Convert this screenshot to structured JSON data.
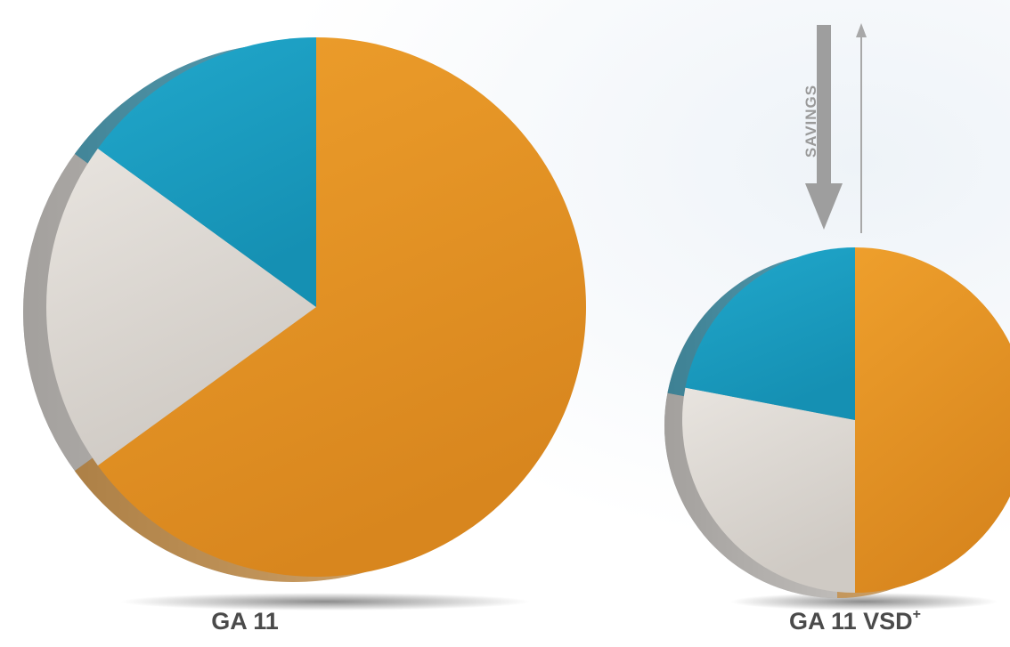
{
  "chart_data": [
    {
      "type": "pie",
      "title": "",
      "label": "GA 11",
      "slices": [
        {
          "value": 65,
          "color": "#ee9f2c",
          "shade": "#d8861e"
        },
        {
          "value": 20,
          "color": "#e8e4df",
          "shade": "#cfcac4"
        },
        {
          "value": 15,
          "color": "#21a8cc",
          "shade": "#1590b3"
        }
      ]
    },
    {
      "type": "pie",
      "title": "",
      "label": "GA 11 VSD",
      "label_superscript": "+",
      "slices": [
        {
          "value": 50,
          "color": "#ee9f2c",
          "shade": "#d8861e"
        },
        {
          "value": 28,
          "color": "#e8e4df",
          "shade": "#cfcac4"
        },
        {
          "value": 22,
          "color": "#21a8cc",
          "shade": "#1590b3"
        }
      ]
    }
  ],
  "annotation": {
    "savings_label": "SAVINGS"
  }
}
